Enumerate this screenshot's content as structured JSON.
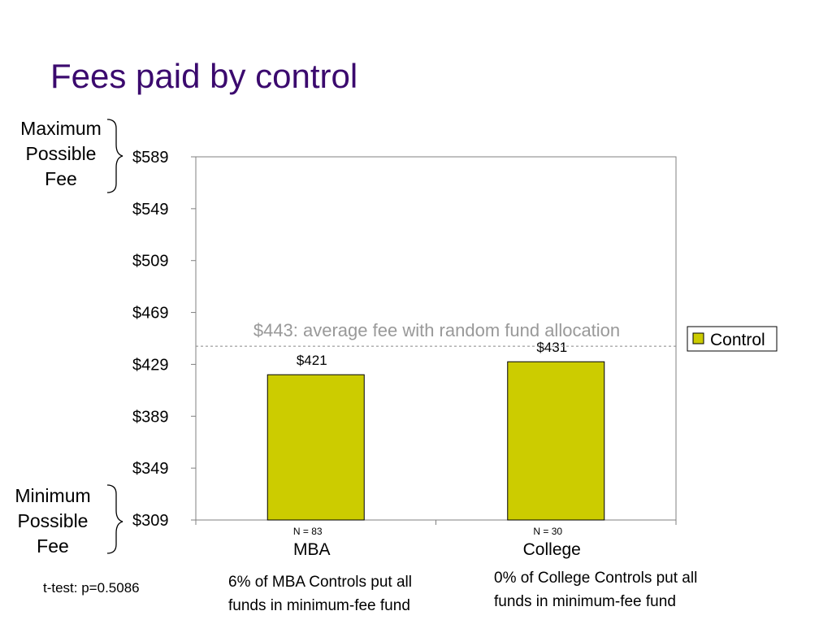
{
  "slide": {
    "title": "Fees paid by control",
    "max_label": "Maximum\nPossible\nFee",
    "min_label": "Minimum\nPossible\nFee",
    "note_mba": "6% of MBA Controls put all\nfunds in minimum-fee fund",
    "note_college": "0% of College Controls put all\nfunds in minimum-fee fund",
    "ttest": "t-test: p=0.5086"
  },
  "chart_data": {
    "type": "bar",
    "categories": [
      "MBA",
      "College"
    ],
    "series": [
      {
        "name": "Control",
        "values": [
          421,
          431
        ]
      }
    ],
    "data_labels": [
      "$421",
      "$431"
    ],
    "n_labels": [
      "N = 83",
      "N = 30"
    ],
    "yticks": [
      589,
      549,
      509,
      469,
      429,
      389,
      349,
      309
    ],
    "ytick_labels": [
      "$589",
      "$549",
      "$509",
      "$469",
      "$429",
      "$389",
      "$349",
      "$309"
    ],
    "ylim": [
      309,
      589
    ],
    "reference_line": {
      "value": 443,
      "label": "$443: average fee with random fund allocation"
    },
    "legend_position": "right",
    "grid": false,
    "colors": {
      "bar": "#cccc00",
      "reference": "#888888"
    }
  }
}
